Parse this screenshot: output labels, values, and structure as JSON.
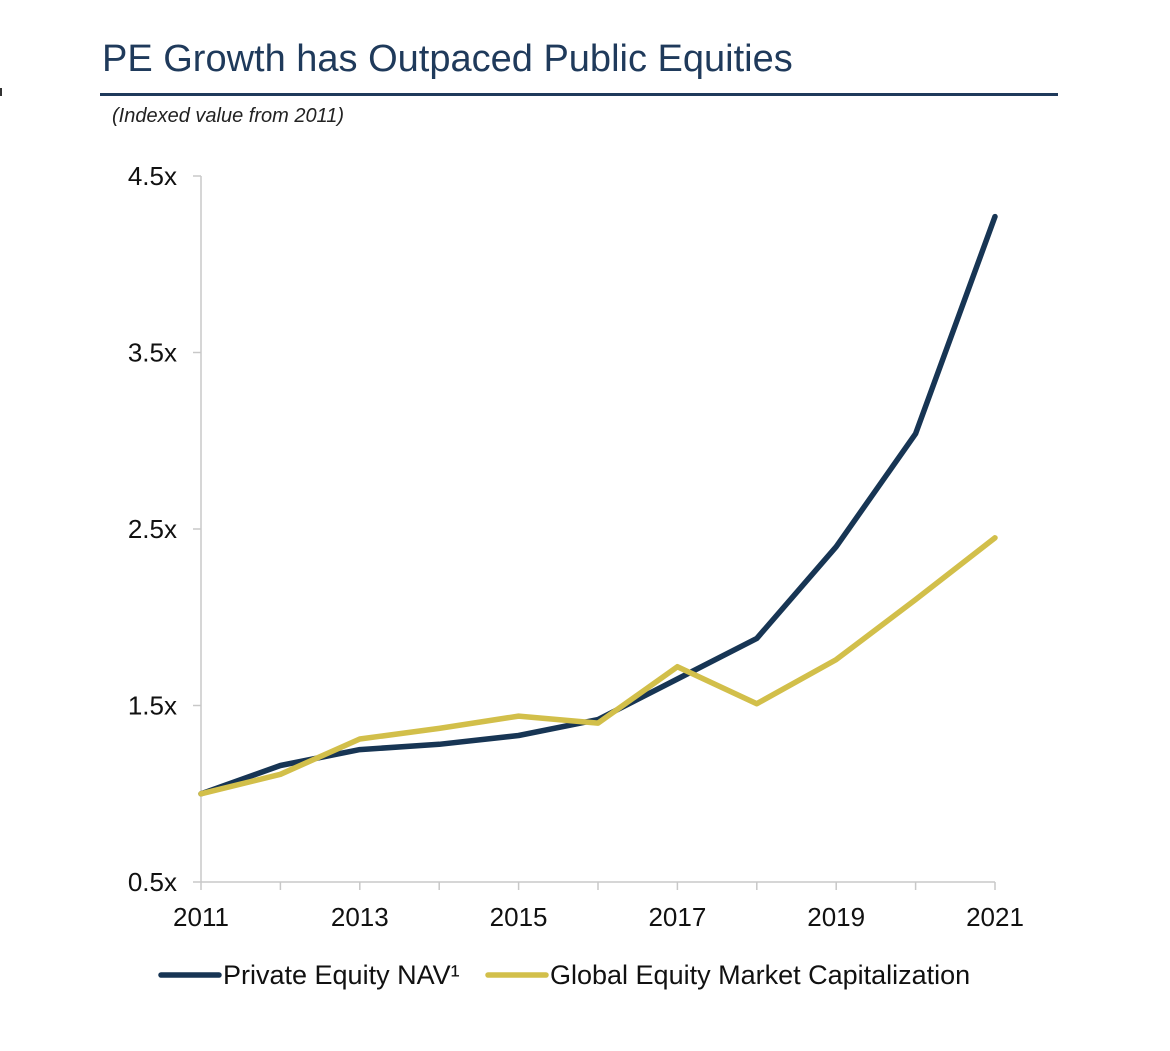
{
  "header": {
    "title": "PE Growth has Outpaced Public Equities",
    "subtitle": "(Indexed value from 2011)"
  },
  "chart_data": {
    "type": "line",
    "title": "PE Growth has Outpaced Public Equities",
    "subtitle": "(Indexed value from 2011)",
    "xlabel": "",
    "ylabel": "",
    "x": [
      2011,
      2012,
      2013,
      2014,
      2015,
      2016,
      2017,
      2018,
      2019,
      2020,
      2021
    ],
    "xticks": [
      "2011",
      "2013",
      "2015",
      "2017",
      "2019",
      "2021"
    ],
    "ylim": [
      0.5,
      4.5
    ],
    "yticks": [
      "0.5x",
      "1.5x",
      "2.5x",
      "3.5x",
      "4.5x"
    ],
    "grid": false,
    "legend_position": "bottom",
    "series": [
      {
        "name": "Private Equity NAV¹",
        "color": "#173554",
        "values": [
          1.0,
          1.16,
          1.25,
          1.28,
          1.33,
          1.42,
          1.65,
          1.88,
          2.4,
          3.04,
          4.27
        ]
      },
      {
        "name": "Global Equity Market Capitalization",
        "color": "#d2bf4a",
        "values": [
          1.0,
          1.11,
          1.31,
          1.37,
          1.44,
          1.4,
          1.72,
          1.51,
          1.76,
          2.1,
          2.45
        ]
      }
    ]
  }
}
